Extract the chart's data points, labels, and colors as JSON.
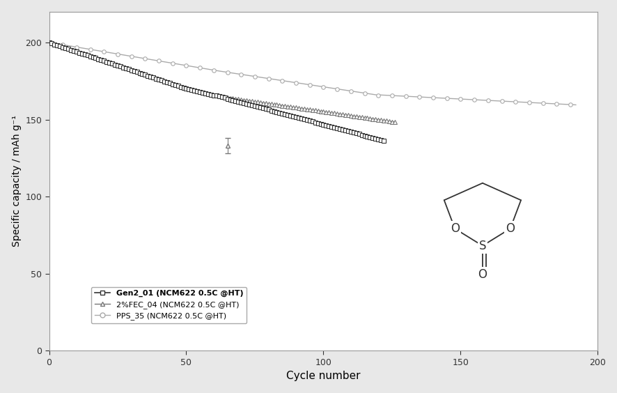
{
  "xlabel": "Cycle number",
  "ylabel": "Specific capacity / mAh g⁻¹",
  "xlim": [
    0,
    200
  ],
  "ylim": [
    0,
    220
  ],
  "xticks": [
    0,
    50,
    100,
    150,
    200
  ],
  "yticks": [
    0,
    50,
    100,
    150,
    200
  ],
  "legend_labels": [
    "Gen2_01 (NCM622 0.5C @HT)",
    "2%FEC_04 (NCM622 0.5C @HT)",
    "PPS_35 (NCM622 0.5C @HT)"
  ],
  "background_color": "#ffffff",
  "figure_facecolor": "#e8e8e8",
  "line_color_gen2": "#333333",
  "line_color_fec": "#777777",
  "line_color_pps": "#aaaaaa"
}
